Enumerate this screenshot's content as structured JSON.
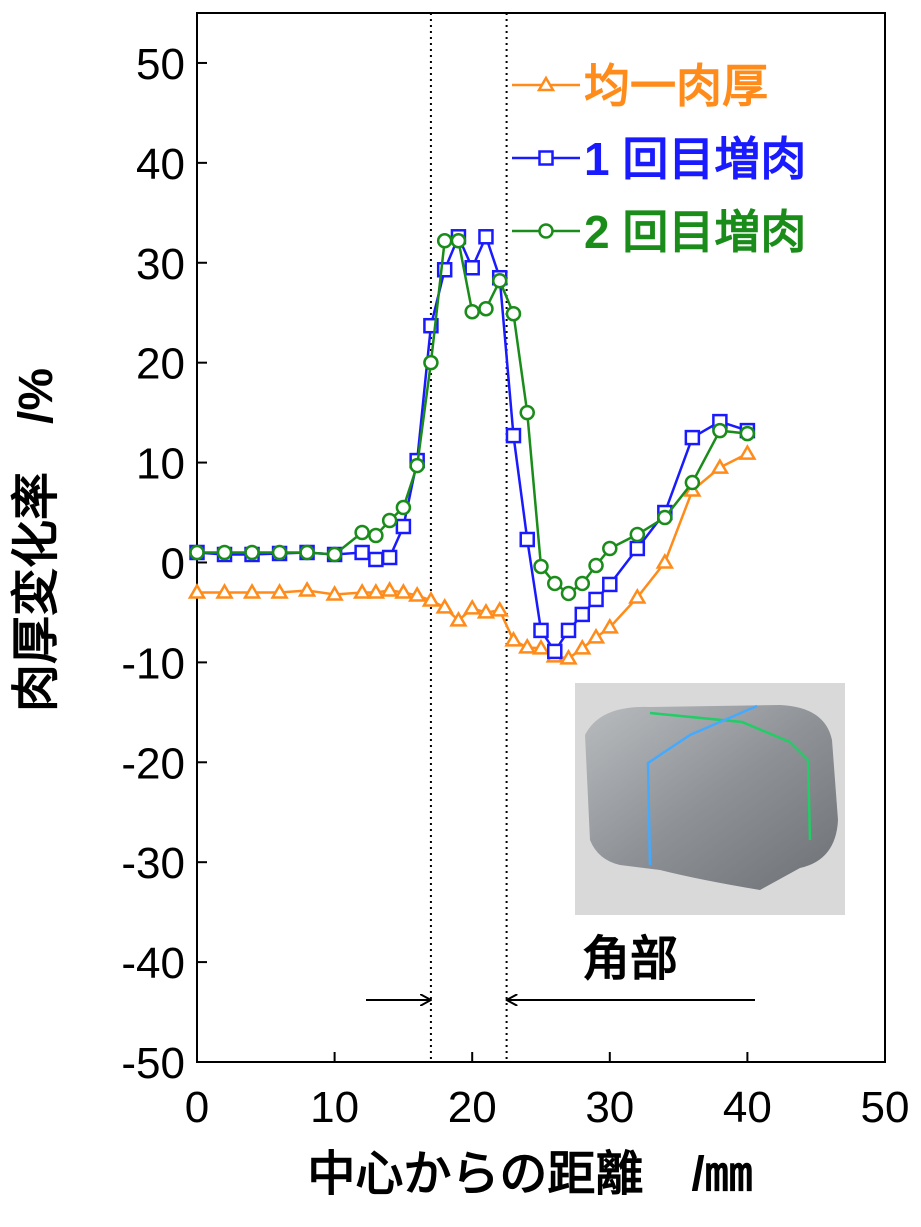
{
  "chart_data": {
    "type": "line",
    "xlabel": "中心からの距離　/㎜",
    "ylabel": "肉厚変化率　/%",
    "xlim": [
      0,
      50
    ],
    "xticks": [
      0,
      10,
      20,
      30,
      40,
      50
    ],
    "ylim": [
      -50,
      55
    ],
    "yticks": [
      -50,
      -40,
      -30,
      -20,
      -10,
      0,
      10,
      20,
      30,
      40,
      50
    ],
    "legend": "upper right",
    "boundaries": [
      17,
      22.5
    ],
    "annotation": "角部",
    "series": [
      {
        "name": "均一肉厚",
        "color": "#ff8c1a",
        "marker": "triangle",
        "x": [
          0,
          2,
          4,
          6,
          8,
          10,
          12,
          13,
          14,
          15,
          16,
          17,
          18,
          19,
          20,
          21,
          22,
          23,
          24,
          25,
          26,
          27,
          28,
          29,
          30,
          32,
          34,
          36,
          38,
          40
        ],
        "values": [
          -3,
          -3,
          -3,
          -3,
          -2.8,
          -3.2,
          -3,
          -3,
          -2.8,
          -3,
          -3.3,
          -3.8,
          -4.5,
          -5.8,
          -4.6,
          -5,
          -4.8,
          -7.8,
          -8.5,
          -8.6,
          -9.4,
          -9.6,
          -8.6,
          -7.5,
          -6.5,
          -3.5,
          0,
          7.2,
          9.5,
          10.9
        ]
      },
      {
        "name": "1 回目増肉",
        "color": "#1a1aff",
        "marker": "square",
        "x": [
          0,
          2,
          4,
          6,
          8,
          10,
          12,
          13,
          14,
          15,
          16,
          17,
          18,
          19,
          20,
          21,
          22,
          23,
          24,
          25,
          26,
          27,
          28,
          29,
          30,
          32,
          34,
          36,
          38,
          40
        ],
        "values": [
          1,
          0.8,
          0.8,
          0.9,
          1,
          0.8,
          1,
          0.3,
          0.5,
          3.6,
          10.2,
          23.7,
          29.3,
          32.6,
          29.5,
          32.6,
          28.5,
          12.7,
          2.3,
          -6.8,
          -8.9,
          -6.8,
          -5.2,
          -3.7,
          -2.2,
          1.4,
          5,
          12.5,
          14.1,
          13.2
        ]
      },
      {
        "name": "2 回目増肉",
        "color": "#1a8c1a",
        "marker": "circle",
        "x": [
          0,
          2,
          4,
          6,
          8,
          10,
          12,
          13,
          14,
          15,
          16,
          17,
          18,
          19,
          20,
          21,
          22,
          23,
          24,
          25,
          26,
          27,
          28,
          29,
          30,
          32,
          34,
          36,
          38,
          40
        ],
        "values": [
          1,
          1,
          1,
          1,
          1,
          0.8,
          3,
          2.7,
          4.2,
          5.5,
          9.7,
          20,
          32.2,
          32.2,
          25.1,
          25.4,
          28.2,
          24.9,
          15,
          -0.4,
          -2.1,
          -3.1,
          -2.1,
          -0.3,
          1.4,
          2.8,
          4.5,
          8,
          13.2,
          12.9
        ]
      }
    ]
  }
}
